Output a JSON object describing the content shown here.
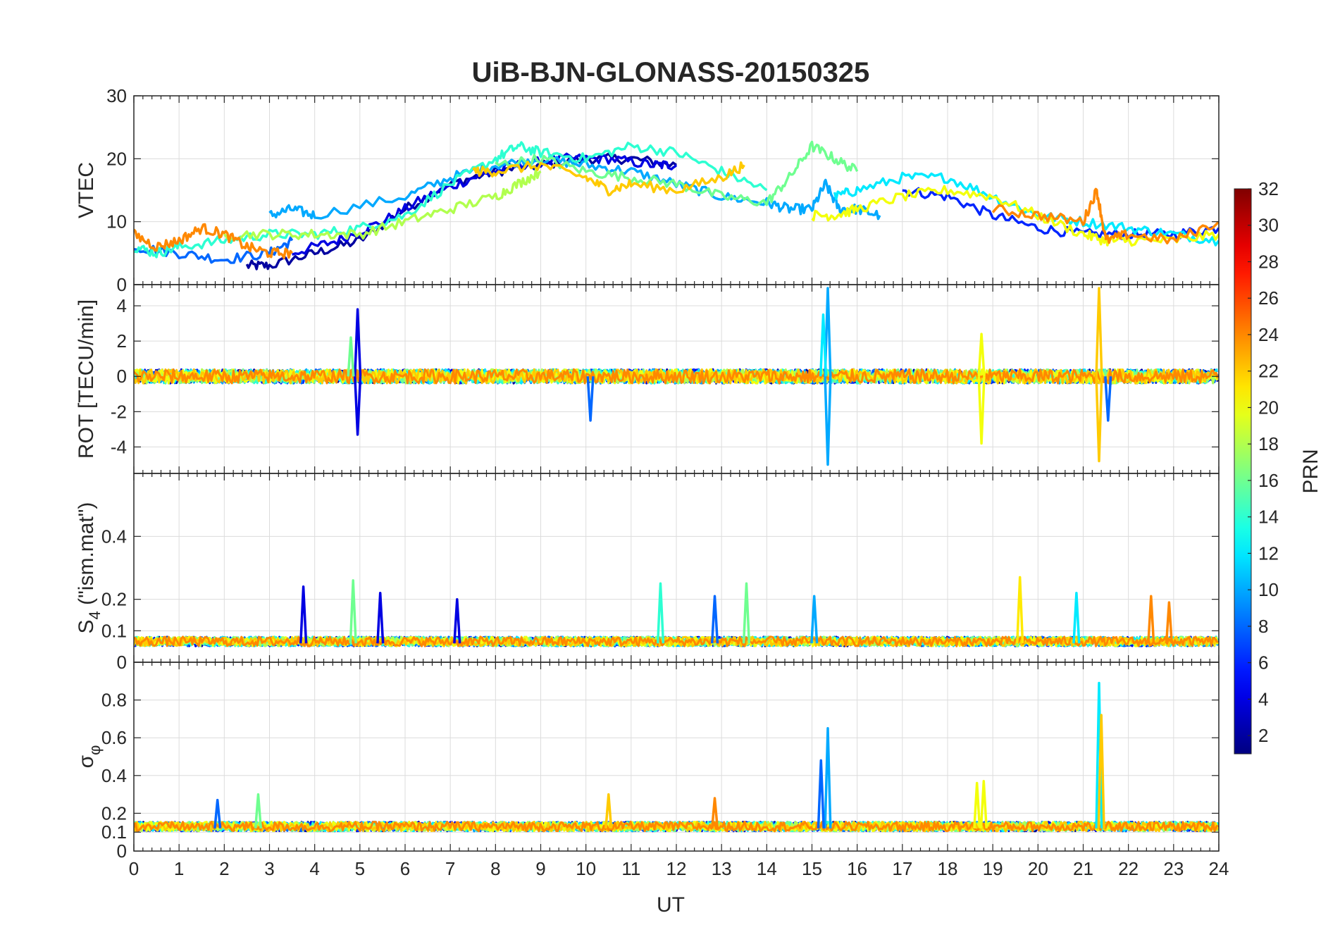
{
  "title": "UiB-BJN-GLONASS-20150325",
  "xlabel": "UT",
  "x_ticks": [
    "0",
    "1",
    "2",
    "3",
    "4",
    "5",
    "6",
    "7",
    "8",
    "9",
    "10",
    "11",
    "12",
    "13",
    "14",
    "15",
    "16",
    "17",
    "18",
    "19",
    "20",
    "21",
    "22",
    "23",
    "24"
  ],
  "colorbar": {
    "label": "PRN",
    "ticks": [
      "2",
      "4",
      "6",
      "8",
      "10",
      "12",
      "14",
      "16",
      "18",
      "20",
      "22",
      "24",
      "26",
      "28",
      "30",
      "32"
    ],
    "range": [
      1,
      32
    ],
    "colormap": "jet"
  },
  "chart_data": [
    {
      "type": "line",
      "ylabel": "VTEC",
      "ylim": [
        0,
        30
      ],
      "yticks": [
        "0",
        "10",
        "20",
        "30"
      ],
      "xlim": [
        0,
        24
      ],
      "grid": true,
      "series": [
        {
          "prn": 2,
          "x": [
            2.5,
            3.0,
            4.0,
            5.0,
            6.0,
            7.0,
            8.0,
            9.0,
            10.0,
            11.0,
            12.0
          ],
          "y": [
            3,
            3,
            5,
            7,
            12,
            16,
            18,
            19,
            20,
            20,
            19
          ]
        },
        {
          "prn": 4,
          "x": [
            3.5,
            4.5,
            5.5,
            6.5,
            7.5,
            8.5,
            9.5,
            10.5,
            11.5,
            12.0
          ],
          "y": [
            5,
            7,
            10,
            14,
            17,
            19,
            20,
            20,
            19,
            19
          ]
        },
        {
          "prn": 6,
          "x": [
            17.0,
            18.0,
            19.0,
            20.0,
            21.0,
            22.0,
            23.0,
            24.0
          ],
          "y": [
            15,
            14,
            11,
            9,
            8,
            8,
            8,
            9
          ]
        },
        {
          "prn": 8,
          "x": [
            0.0,
            1.0,
            2.0,
            3.0,
            3.5
          ],
          "y": [
            6,
            5,
            4,
            5,
            7
          ]
        },
        {
          "prn": 10,
          "x": [
            3.0,
            3.5,
            4.0,
            6.0,
            7.0,
            8.0,
            9.0,
            10.0,
            11.0,
            12.0,
            13.0,
            14.0,
            14.5,
            15.0,
            15.3,
            15.6,
            16.0,
            16.5
          ],
          "y": [
            11,
            12,
            11,
            14,
            17,
            19,
            20,
            19,
            18,
            16,
            14,
            13,
            12,
            12,
            16,
            12,
            12,
            11
          ]
        },
        {
          "prn": 12,
          "x": [
            15.5,
            16.0,
            17.0,
            18.0,
            19.0,
            20.0,
            21.0,
            22.0,
            23.0,
            24.0
          ],
          "y": [
            14,
            15,
            17,
            17,
            14,
            11,
            10,
            9,
            8,
            7
          ]
        },
        {
          "prn": 14,
          "x": [
            0.0,
            0.5,
            1.0,
            2.0,
            3.0,
            4.0,
            5.0,
            6.0,
            7.0,
            8.0,
            8.5,
            9.0,
            10.0,
            11.0,
            12.0,
            13.0,
            14.0
          ],
          "y": [
            6,
            5,
            6,
            7,
            8,
            8,
            9,
            11,
            16,
            20,
            22,
            21,
            20,
            22,
            21,
            18,
            15
          ]
        },
        {
          "prn": 16,
          "x": [
            8.0,
            9.0,
            10.0,
            11.0,
            12.0,
            13.0,
            14.0,
            14.5,
            15.0,
            15.5,
            16.0
          ],
          "y": [
            19,
            20,
            18,
            17,
            16,
            14,
            13,
            17,
            22,
            20,
            18
          ]
        },
        {
          "prn": 18,
          "x": [
            2.0,
            3.0,
            4.0,
            5.0,
            6.0,
            7.0,
            8.0,
            8.5,
            9.0
          ],
          "y": [
            8,
            8,
            8,
            8,
            10,
            12,
            14,
            16,
            18
          ]
        },
        {
          "prn": 20,
          "x": [
            15.0,
            15.5,
            16.0,
            17.0,
            18.0,
            19.0,
            20.0,
            21.0,
            21.5,
            22.0,
            23.0,
            24.0
          ],
          "y": [
            11,
            11,
            12,
            14,
            15,
            14,
            11,
            8,
            7,
            7,
            7,
            8
          ]
        },
        {
          "prn": 22,
          "x": [
            7.5,
            8.0,
            9.0,
            10.0,
            10.5,
            11.0,
            12.0,
            13.0,
            13.5
          ],
          "y": [
            18,
            18,
            19,
            17,
            15,
            16,
            15,
            17,
            19
          ]
        },
        {
          "prn": 24,
          "x": [
            0.0,
            0.5,
            1.0,
            1.5,
            2.0,
            2.5,
            3.0,
            3.5
          ],
          "y": [
            8,
            6,
            7,
            9,
            8,
            6,
            5,
            5
          ]
        },
        {
          "prn": 24,
          "x": [
            19.0,
            20.0,
            21.0,
            21.3,
            21.5,
            22.0,
            23.0,
            24.0
          ],
          "y": [
            12,
            11,
            10,
            15,
            7,
            8,
            7,
            10
          ]
        }
      ]
    },
    {
      "type": "line",
      "ylabel": "ROT [TECU/min]",
      "ylim": [
        -5.5,
        5.2
      ],
      "yticks": [
        "-4",
        "-2",
        "0",
        "2",
        "4"
      ],
      "xlim": [
        0,
        24
      ],
      "grid": true,
      "noise_amplitude": 0.4,
      "spikes": [
        {
          "x": 4.95,
          "y": 3.8,
          "prn": 4
        },
        {
          "x": 4.95,
          "y": -3.3,
          "prn": 4
        },
        {
          "x": 4.8,
          "y": 2.2,
          "prn": 16
        },
        {
          "x": 15.35,
          "y": 5.0,
          "prn": 10
        },
        {
          "x": 15.35,
          "y": -5.0,
          "prn": 10
        },
        {
          "x": 15.25,
          "y": 3.5,
          "prn": 12
        },
        {
          "x": 18.75,
          "y": -3.8,
          "prn": 20
        },
        {
          "x": 18.75,
          "y": 2.4,
          "prn": 20
        },
        {
          "x": 21.35,
          "y": 5.0,
          "prn": 22
        },
        {
          "x": 21.35,
          "y": -4.8,
          "prn": 22
        },
        {
          "x": 21.55,
          "y": -2.5,
          "prn": 8
        },
        {
          "x": 10.1,
          "y": -2.5,
          "prn": 8
        }
      ]
    },
    {
      "type": "line",
      "ylabel": "S4 (\"ism.mat\")",
      "ylabel_main": "S",
      "ylabel_sub": "4",
      "ylabel_rest": " (\"ism.mat\")",
      "ylim": [
        0,
        0.6
      ],
      "yticks": [
        "0",
        "0.1",
        "0.2",
        "0.4"
      ],
      "xlim": [
        0,
        24
      ],
      "grid": true,
      "baseline": 0.06,
      "noise_amplitude": 0.03,
      "spikes": [
        {
          "x": 3.75,
          "y": 0.24,
          "prn": 4
        },
        {
          "x": 4.85,
          "y": 0.26,
          "prn": 16
        },
        {
          "x": 5.45,
          "y": 0.22,
          "prn": 4
        },
        {
          "x": 7.15,
          "y": 0.2,
          "prn": 4
        },
        {
          "x": 12.85,
          "y": 0.21,
          "prn": 8
        },
        {
          "x": 13.55,
          "y": 0.25,
          "prn": 16
        },
        {
          "x": 11.65,
          "y": 0.25,
          "prn": 14
        },
        {
          "x": 15.05,
          "y": 0.21,
          "prn": 10
        },
        {
          "x": 19.6,
          "y": 0.27,
          "prn": 21
        },
        {
          "x": 22.5,
          "y": 0.21,
          "prn": 24
        },
        {
          "x": 22.9,
          "y": 0.19,
          "prn": 24
        },
        {
          "x": 20.85,
          "y": 0.22,
          "prn": 12
        }
      ]
    },
    {
      "type": "line",
      "ylabel": "σφ",
      "ylabel_main": "σ",
      "ylabel_sub": "φ",
      "ylim": [
        0,
        1.0
      ],
      "yticks": [
        "0",
        "0.1",
        "0.2",
        "0.4",
        "0.6",
        "0.8"
      ],
      "xlim": [
        0,
        24
      ],
      "grid": true,
      "baseline": 0.12,
      "noise_amplitude": 0.05,
      "spikes": [
        {
          "x": 15.35,
          "y": 0.65,
          "prn": 10
        },
        {
          "x": 15.2,
          "y": 0.48,
          "prn": 8
        },
        {
          "x": 21.35,
          "y": 0.89,
          "prn": 12
        },
        {
          "x": 21.4,
          "y": 0.72,
          "prn": 22
        },
        {
          "x": 18.65,
          "y": 0.36,
          "prn": 20
        },
        {
          "x": 18.8,
          "y": 0.37,
          "prn": 20
        },
        {
          "x": 10.5,
          "y": 0.3,
          "prn": 22
        },
        {
          "x": 12.85,
          "y": 0.28,
          "prn": 24
        },
        {
          "x": 2.75,
          "y": 0.3,
          "prn": 16
        },
        {
          "x": 1.85,
          "y": 0.27,
          "prn": 8
        }
      ]
    }
  ]
}
